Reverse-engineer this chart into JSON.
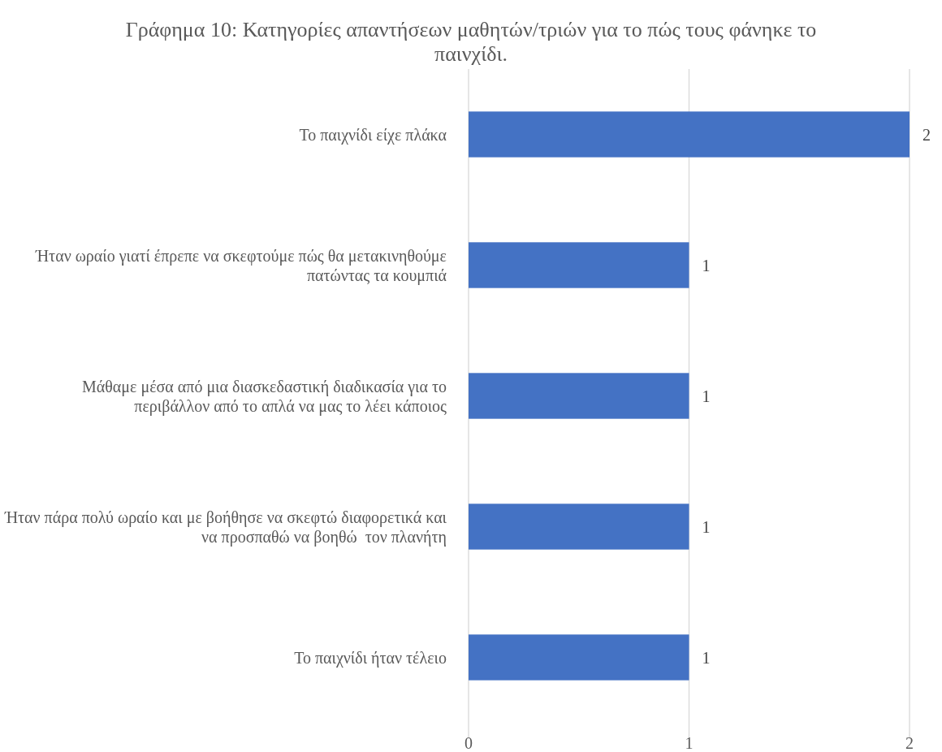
{
  "chart_data": {
    "type": "bar",
    "orientation": "horizontal",
    "title": "Γράφημα 10: Κατηγορίες απαντήσεων μαθητών/τριών για το πώς τους φάνηκε το παινχίδι.",
    "categories": [
      "Το παιχνίδι είχε πλάκα",
      "Ήταν ωραίο γιατί έπρεπε να σκεφτούμε πώς θα μετακινηθούμε πατώντας τα κουμπιά",
      "Μάθαμε μέσα από μια διασκεδαστική διαδικασία για το περιβάλλον από το απλά να μας το λέει κάποιος",
      "Ήταν πάρα πολύ ωραίο και με βοήθησε να σκεφτώ διαφορετικά και να προσπαθώ να βοηθώ  τον πλανήτη",
      "Το παιχνίδι ήταν τέλειο"
    ],
    "values": [
      2,
      1,
      1,
      1,
      1
    ],
    "color": "#4472c4",
    "xlim": [
      0,
      2
    ],
    "xticks": [
      0,
      1,
      2
    ],
    "grid": "x",
    "data_labels": true
  }
}
